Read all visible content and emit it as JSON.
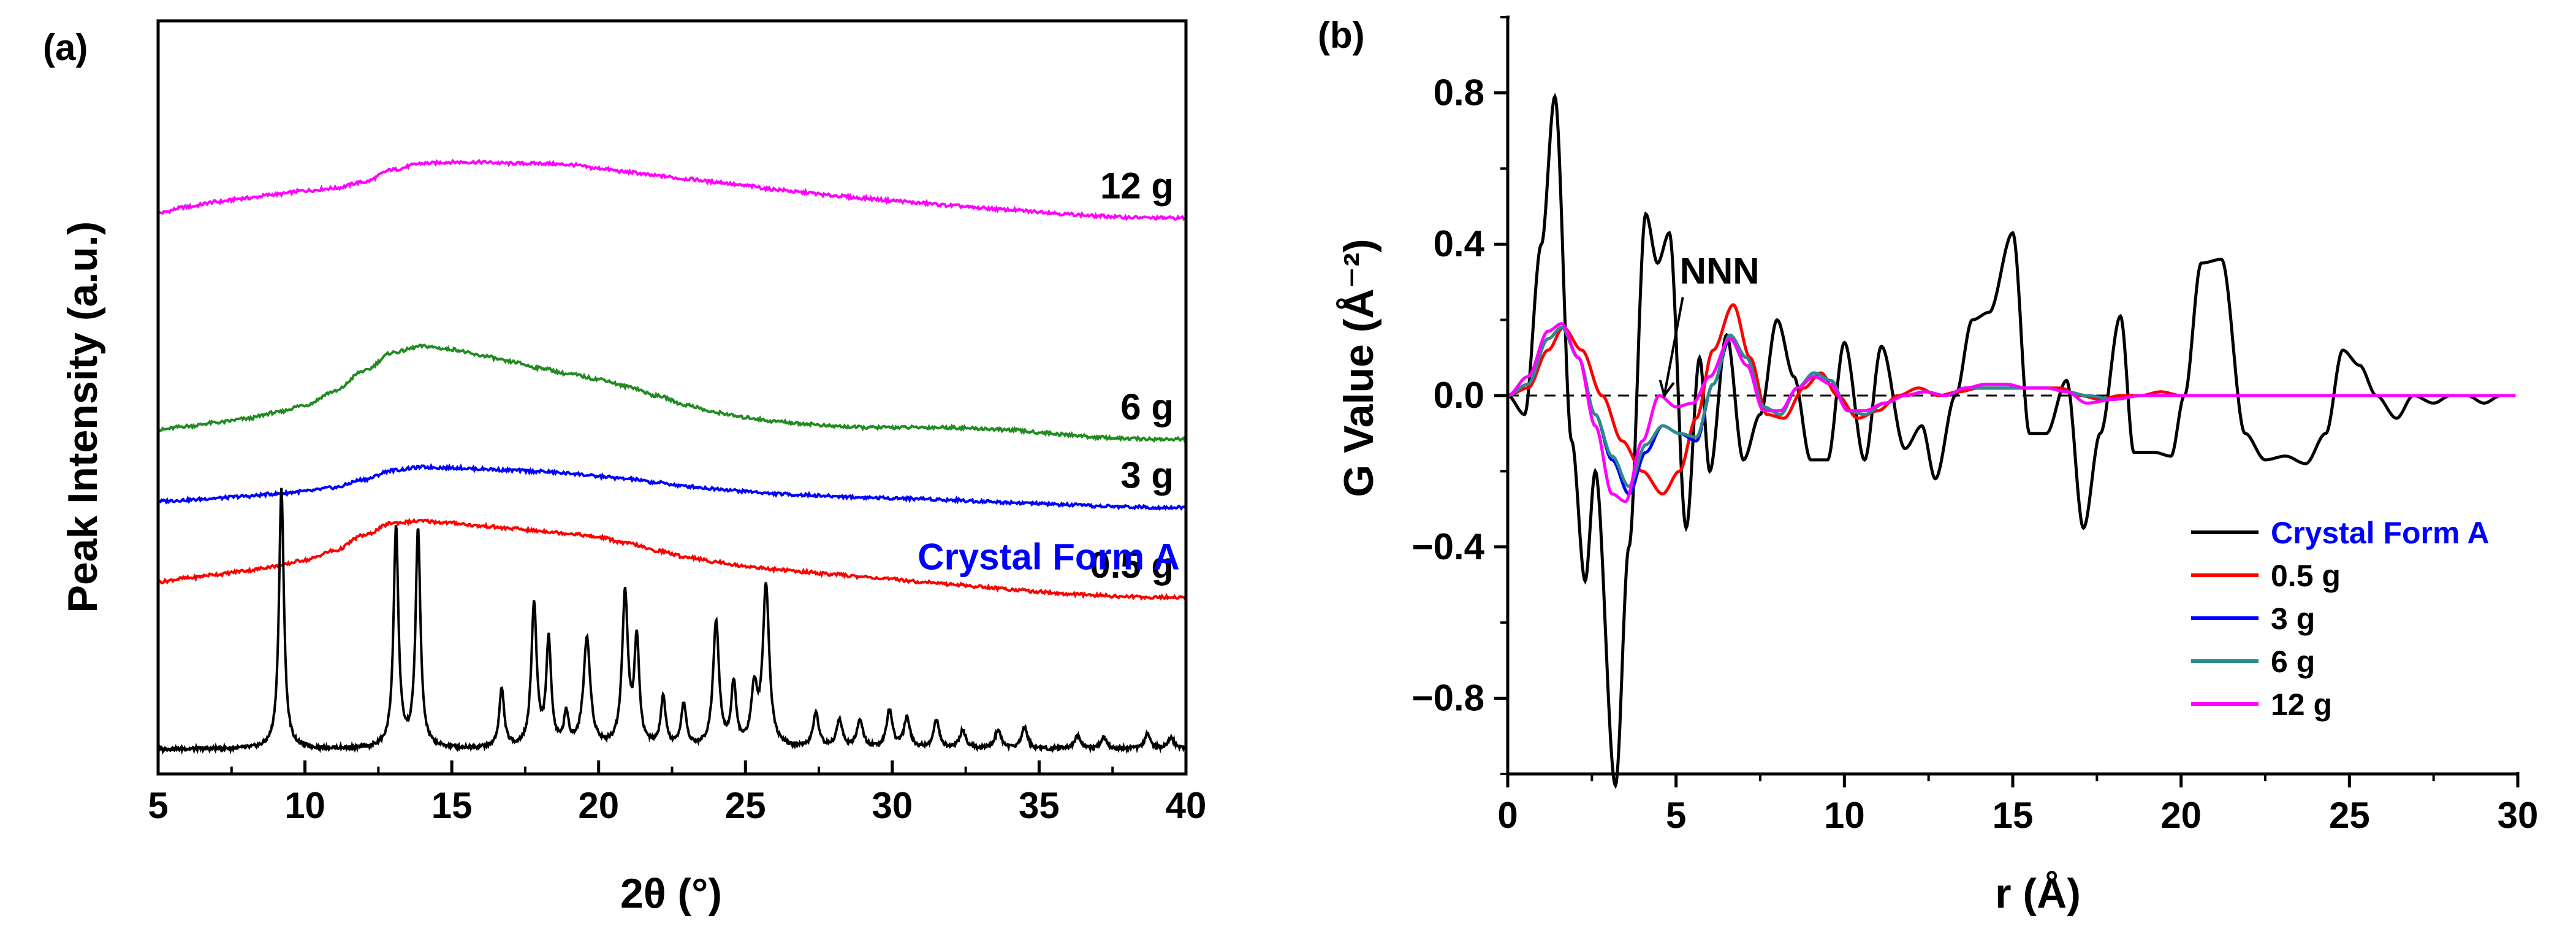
{
  "chart_data": [
    {
      "panel_label": "(a)",
      "type": "line",
      "xlabel": "2θ (°)",
      "ylabel": "Peak Intensity (a.u.)",
      "xlim": [
        5,
        40
      ],
      "x_ticks": [
        5,
        10,
        15,
        20,
        25,
        30,
        35,
        40
      ],
      "x_tick_labels": [
        "5",
        "10",
        "15",
        "20",
        "25",
        "30",
        "35",
        "40"
      ],
      "y_ticks_shown": false,
      "series": [
        {
          "name": "12 g",
          "label": "12 g",
          "color": "#ff00ff",
          "offset": 8.7,
          "x": [
            5,
            6,
            7,
            8,
            9,
            10,
            11,
            12,
            13,
            14,
            15,
            16,
            17,
            18,
            19,
            20,
            21,
            22,
            23,
            24,
            25,
            26,
            27,
            28,
            29,
            30,
            31,
            32,
            33,
            34,
            35,
            36,
            37,
            38,
            39,
            40
          ],
          "y": [
            0.0,
            0.1,
            0.18,
            0.24,
            0.3,
            0.36,
            0.4,
            0.5,
            0.7,
            0.8,
            0.82,
            0.82,
            0.8,
            0.8,
            0.78,
            0.72,
            0.66,
            0.6,
            0.55,
            0.5,
            0.44,
            0.38,
            0.33,
            0.28,
            0.24,
            0.2,
            0.16,
            0.12,
            0.08,
            0.05,
            0.02,
            -0.02,
            -0.05,
            -0.07,
            -0.08,
            -0.08
          ]
        },
        {
          "name": "6 g",
          "label": "6 g",
          "color": "#228b22",
          "offset": 5.2,
          "x": [
            5,
            6,
            7,
            8,
            9,
            10,
            11,
            12,
            13,
            14,
            15,
            16,
            17,
            18,
            19,
            20,
            21,
            22,
            23,
            24,
            25,
            26,
            27,
            28,
            29,
            30,
            31,
            32,
            33,
            34,
            35,
            36,
            37,
            38,
            39,
            40
          ],
          "y": [
            0.0,
            0.06,
            0.12,
            0.18,
            0.28,
            0.4,
            0.62,
            0.95,
            1.25,
            1.35,
            1.3,
            1.2,
            1.1,
            1.0,
            0.9,
            0.82,
            0.7,
            0.55,
            0.4,
            0.28,
            0.2,
            0.14,
            0.1,
            0.06,
            0.04,
            0.04,
            0.04,
            0.04,
            0.02,
            0.0,
            -0.04,
            -0.08,
            -0.12,
            -0.14,
            -0.15,
            -0.15
          ]
        },
        {
          "name": "3 g",
          "label": "3 g",
          "color": "#0000ff",
          "offset": 4.05,
          "x": [
            5,
            6,
            7,
            8,
            9,
            10,
            11,
            12,
            13,
            14,
            15,
            16,
            17,
            18,
            19,
            20,
            21,
            22,
            23,
            24,
            25,
            26,
            27,
            28,
            29,
            30,
            31,
            32,
            33,
            34,
            35,
            36,
            37,
            38,
            39,
            40
          ],
          "y": [
            0.0,
            0.02,
            0.05,
            0.08,
            0.12,
            0.16,
            0.22,
            0.35,
            0.5,
            0.55,
            0.54,
            0.52,
            0.5,
            0.48,
            0.45,
            0.4,
            0.36,
            0.3,
            0.24,
            0.2,
            0.16,
            0.12,
            0.1,
            0.08,
            0.06,
            0.05,
            0.04,
            0.02,
            0.0,
            -0.02,
            -0.04,
            -0.06,
            -0.08,
            -0.09,
            -0.1,
            -0.1
          ]
        },
        {
          "name": "0.5 g",
          "label": "0.5 g",
          "color": "#ff0000",
          "offset": 2.75,
          "x": [
            5,
            6,
            7,
            8,
            9,
            10,
            11,
            12,
            13,
            14,
            15,
            16,
            17,
            18,
            19,
            20,
            21,
            22,
            23,
            24,
            25,
            26,
            27,
            28,
            29,
            30,
            31,
            32,
            33,
            34,
            35,
            36,
            37,
            38,
            39,
            40
          ],
          "y": [
            0.0,
            0.06,
            0.12,
            0.18,
            0.25,
            0.35,
            0.5,
            0.75,
            0.95,
            0.98,
            0.95,
            0.9,
            0.86,
            0.82,
            0.78,
            0.72,
            0.62,
            0.5,
            0.4,
            0.32,
            0.25,
            0.2,
            0.16,
            0.12,
            0.08,
            0.04,
            0.0,
            -0.04,
            -0.08,
            -0.12,
            -0.16,
            -0.2,
            -0.22,
            -0.24,
            -0.25,
            -0.25
          ]
        },
        {
          "name": "Crystal Form A",
          "label": "Crystal Form A",
          "label_color": "#0000ff",
          "color": "#000000",
          "offset": 0.0,
          "baseline": 0.05,
          "peaks": [
            {
              "x": 9.2,
              "h": 4.2,
              "w": 0.1
            },
            {
              "x": 13.1,
              "h": 3.55,
              "w": 0.1
            },
            {
              "x": 13.85,
              "h": 3.5,
              "w": 0.1
            },
            {
              "x": 16.7,
              "h": 0.95,
              "w": 0.1
            },
            {
              "x": 17.8,
              "h": 2.3,
              "w": 0.11
            },
            {
              "x": 18.3,
              "h": 1.7,
              "w": 0.1
            },
            {
              "x": 18.9,
              "h": 0.5,
              "w": 0.1
            },
            {
              "x": 19.6,
              "h": 1.75,
              "w": 0.14
            },
            {
              "x": 20.9,
              "h": 2.45,
              "w": 0.12
            },
            {
              "x": 21.3,
              "h": 1.7,
              "w": 0.1
            },
            {
              "x": 22.2,
              "h": 0.8,
              "w": 0.1
            },
            {
              "x": 22.9,
              "h": 0.7,
              "w": 0.1
            },
            {
              "x": 24.0,
              "h": 2.05,
              "w": 0.12
            },
            {
              "x": 24.6,
              "h": 1.0,
              "w": 0.1
            },
            {
              "x": 25.3,
              "h": 0.9,
              "w": 0.12
            },
            {
              "x": 25.7,
              "h": 2.6,
              "w": 0.13
            },
            {
              "x": 27.4,
              "h": 0.55,
              "w": 0.12
            },
            {
              "x": 28.2,
              "h": 0.45,
              "w": 0.12
            },
            {
              "x": 28.9,
              "h": 0.45,
              "w": 0.12
            },
            {
              "x": 29.9,
              "h": 0.6,
              "w": 0.12
            },
            {
              "x": 30.5,
              "h": 0.5,
              "w": 0.12
            },
            {
              "x": 31.5,
              "h": 0.45,
              "w": 0.12
            },
            {
              "x": 32.4,
              "h": 0.3,
              "w": 0.12
            },
            {
              "x": 33.6,
              "h": 0.3,
              "w": 0.12
            },
            {
              "x": 34.5,
              "h": 0.35,
              "w": 0.12
            },
            {
              "x": 36.3,
              "h": 0.2,
              "w": 0.12
            },
            {
              "x": 37.2,
              "h": 0.18,
              "w": 0.12
            },
            {
              "x": 38.7,
              "h": 0.25,
              "w": 0.12
            },
            {
              "x": 39.5,
              "h": 0.18,
              "w": 0.12
            }
          ]
        }
      ]
    },
    {
      "panel_label": "(b)",
      "type": "line",
      "xlabel": "r (Å)",
      "ylabel": "G Value (Å⁻²)",
      "xlim": [
        0,
        30
      ],
      "ylim": [
        -1.0,
        1.0
      ],
      "x_ticks": [
        0,
        5,
        10,
        15,
        20,
        25,
        30
      ],
      "x_tick_labels": [
        "0",
        "5",
        "10",
        "15",
        "20",
        "25",
        "30"
      ],
      "y_ticks": [
        -0.8,
        -0.4,
        0.0,
        0.4,
        0.8
      ],
      "y_tick_labels": [
        "−0.8",
        "−0.4",
        "0.0",
        "0.4",
        "0.8"
      ],
      "zero_line": "dashed",
      "annotation": {
        "text": "NNN",
        "from": [
          5.2,
          0.26
        ],
        "to": [
          4.65,
          0.0
        ]
      },
      "legend_position": "bottom-right",
      "series": [
        {
          "name": "Crystal Form A",
          "label_color": "#0000ff",
          "color": "#000000",
          "x": [
            0,
            0.5,
            1.0,
            1.4,
            1.9,
            2.3,
            2.6,
            3.2,
            3.6,
            4.1,
            4.45,
            4.8,
            5.3,
            5.7,
            6.0,
            6.5,
            7.0,
            7.5,
            8.0,
            8.5,
            9.0,
            9.5,
            10.0,
            10.6,
            11.1,
            11.8,
            12.3,
            12.7,
            13.3,
            13.8,
            14.3,
            15.0,
            15.5,
            16.0,
            16.6,
            17.1,
            17.6,
            18.2,
            18.6,
            19.2,
            19.7,
            20.1,
            20.6,
            21.2,
            21.9,
            22.5,
            23.1,
            23.7,
            24.3,
            24.8,
            25.3,
            25.8,
            26.4,
            26.9,
            27.5,
            28.0,
            28.5,
            29.0,
            29.5,
            30.0
          ],
          "y": [
            0.0,
            -0.05,
            0.4,
            0.79,
            -0.12,
            -0.49,
            -0.2,
            -1.03,
            -0.4,
            0.48,
            0.35,
            0.43,
            -0.35,
            0.1,
            -0.2,
            0.16,
            -0.17,
            -0.05,
            0.2,
            0.05,
            -0.17,
            -0.17,
            0.14,
            -0.17,
            0.13,
            -0.14,
            -0.08,
            -0.22,
            0.0,
            0.2,
            0.22,
            0.43,
            -0.1,
            -0.1,
            0.04,
            -0.35,
            -0.1,
            0.21,
            -0.15,
            -0.15,
            -0.16,
            0.0,
            0.35,
            0.36,
            -0.1,
            -0.17,
            -0.16,
            -0.18,
            -0.1,
            0.12,
            0.08,
            0.0,
            -0.06,
            0.0,
            -0.02,
            0.0,
            0.0,
            -0.02,
            0.0,
            0.0
          ]
        },
        {
          "name": "0.5 g",
          "color": "#ff0000",
          "x": [
            0,
            0.6,
            1.2,
            1.65,
            2.2,
            2.8,
            3.4,
            4.0,
            4.6,
            5.1,
            5.6,
            6.1,
            6.7,
            7.2,
            7.7,
            8.2,
            8.8,
            9.3,
            9.8,
            10.4,
            11.0,
            11.6,
            12.2,
            12.8,
            13.4,
            14.0,
            14.6,
            15.2,
            15.8,
            16.4,
            17.0,
            17.6,
            18.2,
            18.8,
            19.4,
            20.0,
            20.8,
            21.6,
            22.4,
            23.2,
            24.0,
            25.0,
            26.0,
            27.0,
            28.0,
            29.0,
            30.0
          ],
          "y": [
            0.0,
            0.02,
            0.12,
            0.18,
            0.12,
            0.0,
            -0.12,
            -0.2,
            -0.26,
            -0.2,
            -0.06,
            0.12,
            0.24,
            0.1,
            -0.05,
            -0.06,
            0.02,
            0.06,
            0.0,
            -0.06,
            -0.04,
            0.0,
            0.02,
            0.0,
            0.01,
            0.02,
            0.02,
            0.02,
            0.02,
            0.02,
            0.0,
            -0.01,
            0.0,
            0.0,
            0.01,
            0.0,
            0.0,
            0.0,
            0.0,
            0.0,
            0.0,
            0.0,
            0.0,
            0.0,
            0.0,
            0.0,
            0.0
          ]
        },
        {
          "name": "3 g",
          "color": "#0000ff",
          "x": [
            0,
            0.6,
            1.2,
            1.6,
            2.1,
            2.6,
            3.1,
            3.6,
            4.1,
            4.6,
            5.1,
            5.6,
            6.1,
            6.6,
            7.1,
            7.6,
            8.1,
            8.6,
            9.1,
            9.6,
            10.1,
            10.6,
            11.2,
            11.8,
            12.4,
            13.0,
            13.6,
            14.2,
            14.8,
            15.4,
            16.0,
            16.6,
            17.2,
            18.0,
            18.8,
            19.6,
            20.4,
            21.2,
            22.0,
            23.0,
            24.0,
            25.0,
            26.0,
            27.0,
            28.0,
            29.0,
            30.0
          ],
          "y": [
            0.0,
            0.03,
            0.15,
            0.18,
            0.1,
            -0.05,
            -0.17,
            -0.26,
            -0.15,
            -0.08,
            -0.1,
            -0.12,
            0.03,
            0.15,
            0.1,
            -0.03,
            -0.05,
            0.02,
            0.06,
            0.04,
            -0.04,
            -0.05,
            -0.02,
            0.0,
            0.01,
            0.0,
            0.02,
            0.02,
            0.02,
            0.02,
            0.02,
            0.01,
            0.0,
            -0.01,
            0.0,
            0.0,
            0.0,
            0.0,
            0.0,
            0.0,
            0.0,
            0.0,
            0.0,
            0.0,
            0.0,
            0.0,
            0.0
          ]
        },
        {
          "name": "6 g",
          "color": "#2e8b8b",
          "x": [
            0,
            0.6,
            1.2,
            1.6,
            2.1,
            2.6,
            3.1,
            3.6,
            4.1,
            4.6,
            5.1,
            5.6,
            6.1,
            6.6,
            7.1,
            7.6,
            8.1,
            8.6,
            9.1,
            9.6,
            10.1,
            10.6,
            11.2,
            11.8,
            12.4,
            13.0,
            13.6,
            14.2,
            14.8,
            15.4,
            16.0,
            16.6,
            17.2,
            18.0,
            18.8,
            19.6,
            20.4,
            21.2,
            22.0,
            23.0,
            24.0,
            25.0,
            26.0,
            27.0,
            28.0,
            29.0,
            30.0
          ],
          "y": [
            0.0,
            0.03,
            0.15,
            0.18,
            0.1,
            -0.05,
            -0.16,
            -0.24,
            -0.13,
            -0.08,
            -0.1,
            -0.11,
            0.03,
            0.16,
            0.1,
            -0.03,
            -0.05,
            0.02,
            0.06,
            0.04,
            -0.04,
            -0.05,
            -0.02,
            0.0,
            0.01,
            0.0,
            0.02,
            0.02,
            0.02,
            0.02,
            0.02,
            0.01,
            0.0,
            -0.01,
            0.0,
            0.0,
            0.0,
            0.0,
            0.0,
            0.0,
            0.0,
            0.0,
            0.0,
            0.0,
            0.0,
            0.0,
            0.0
          ]
        },
        {
          "name": "12 g",
          "color": "#ff00ff",
          "x": [
            0,
            0.6,
            1.2,
            1.6,
            2.1,
            2.6,
            3.1,
            3.5,
            4.0,
            4.5,
            5.0,
            5.5,
            6.0,
            6.6,
            7.1,
            7.6,
            8.1,
            8.6,
            9.1,
            9.6,
            10.1,
            10.6,
            11.2,
            11.8,
            12.4,
            13.0,
            13.6,
            14.2,
            14.8,
            15.4,
            16.0,
            16.6,
            17.2,
            18.0,
            18.8,
            19.6,
            20.4,
            21.2,
            22.0,
            23.0,
            24.0,
            25.0,
            26.0,
            27.0,
            28.0,
            29.0,
            30.0
          ],
          "y": [
            0.0,
            0.05,
            0.17,
            0.19,
            0.1,
            -0.08,
            -0.26,
            -0.28,
            -0.12,
            0.0,
            -0.03,
            -0.02,
            0.05,
            0.15,
            0.08,
            -0.04,
            -0.04,
            0.02,
            0.05,
            0.03,
            -0.04,
            -0.04,
            -0.02,
            0.0,
            0.01,
            0.0,
            0.02,
            0.03,
            0.03,
            0.02,
            0.02,
            0.01,
            -0.02,
            -0.01,
            0.0,
            0.0,
            0.0,
            0.0,
            0.0,
            0.0,
            0.0,
            0.0,
            0.0,
            0.0,
            0.0,
            0.0,
            0.0
          ]
        }
      ]
    }
  ]
}
